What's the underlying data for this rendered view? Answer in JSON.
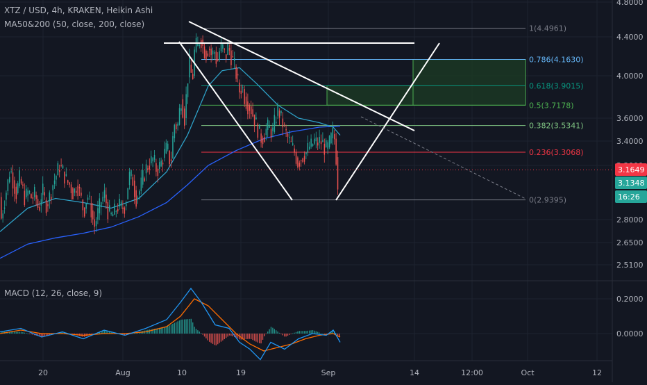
{
  "header": {
    "symbol_line": "XTZ / USD, 4h, KRAKEN, Heikin Ashi",
    "ma_line": "MA50&200 (50, close, 200, close)",
    "macd_line": "MACD (12, 26, close, 9)"
  },
  "colors": {
    "background": "#131722",
    "grid": "#1e2330",
    "axis_text": "#b2b5be",
    "up": "#26a69a",
    "down": "#ef5350",
    "ma50": "#2ea1c7",
    "ma200": "#2962ff",
    "macd": "#2196f3",
    "signal": "#ff6d00",
    "fib_zero": "#787b86",
    "fib_236": "#f23645",
    "fib_382": "#81c784",
    "fib_5": "#4caf50",
    "fib_618": "#089981",
    "fib_786": "#64b5f6",
    "fib_1": "#787b86",
    "target_box_fill": "#1b3a24",
    "drawing": "#ffffff",
    "price_badge_red": "#f23645",
    "price_badge_green": "#26a69a"
  },
  "price_axis": {
    "ticks": [
      "4.8000",
      "4.4000",
      "4.0000",
      "3.6000",
      "3.4000",
      "3.2000",
      "2.8000",
      "2.6500",
      "2.5100"
    ],
    "tick_values": [
      4.8,
      4.4,
      4.0,
      3.6,
      3.4,
      3.2,
      2.8,
      2.65,
      2.51
    ],
    "scale": "log",
    "range": [
      2.45,
      4.85
    ]
  },
  "macd_axis": {
    "ticks": [
      "0.2000",
      "0.0000"
    ],
    "tick_values": [
      0.2,
      0.0
    ],
    "range": [
      -0.2,
      0.3
    ]
  },
  "time_axis": {
    "labels": [
      "20",
      "Aug",
      "10",
      "19",
      "Sep",
      "14",
      "12:00",
      "Oct",
      "12"
    ]
  },
  "price_badges": [
    {
      "label": "3.1649",
      "value": 3.1649,
      "color": "red"
    },
    {
      "label": "3.1348",
      "value": 3.1348,
      "color": "green"
    },
    {
      "label": "16:26",
      "value": 3.1348,
      "color": "green"
    }
  ],
  "chart_data": {
    "type": "candlestick",
    "fib_levels": [
      {
        "ratio": "1",
        "label": "1(4.4961)",
        "price": 4.4961
      },
      {
        "ratio": "0.786",
        "label": "0.786(4.1630)",
        "price": 4.163
      },
      {
        "ratio": "0.618",
        "label": "0.618(3.9015)",
        "price": 3.9015
      },
      {
        "ratio": "0.5",
        "label": "0.5(3.7178)",
        "price": 3.7178
      },
      {
        "ratio": "0.382",
        "label": "0.382(3.5341)",
        "price": 3.5341
      },
      {
        "ratio": "0.236",
        "label": "0.236(3.3068)",
        "price": 3.3068
      },
      {
        "ratio": "0",
        "label": "0(2.9395)",
        "price": 2.9395
      }
    ],
    "price_path": [
      [
        0,
        2.78
      ],
      [
        5,
        2.92
      ],
      [
        10,
        3.05
      ],
      [
        14,
        3.18
      ],
      [
        18,
        3.08
      ],
      [
        23,
        2.98
      ],
      [
        27,
        3.1
      ],
      [
        30,
        3.05
      ],
      [
        35,
        2.95
      ],
      [
        40,
        3.0
      ],
      [
        45,
        2.95
      ],
      [
        50,
        2.98
      ],
      [
        55,
        2.86
      ],
      [
        60,
        3.02
      ],
      [
        65,
        2.9
      ],
      [
        70,
        2.95
      ],
      [
        75,
        3.05
      ],
      [
        80,
        3.12
      ],
      [
        85,
        3.2
      ],
      [
        90,
        3.15
      ],
      [
        95,
        3.08
      ],
      [
        100,
        3.05
      ],
      [
        105,
        2.98
      ],
      [
        110,
        3.06
      ],
      [
        115,
        2.97
      ],
      [
        120,
        2.85
      ],
      [
        125,
        2.98
      ],
      [
        130,
        2.88
      ],
      [
        135,
        2.75
      ],
      [
        140,
        2.84
      ],
      [
        145,
        2.93
      ],
      [
        150,
        2.98
      ],
      [
        155,
        2.85
      ],
      [
        160,
        2.82
      ],
      [
        165,
        2.86
      ],
      [
        170,
        2.9
      ],
      [
        175,
        2.88
      ],
      [
        180,
        2.9
      ],
      [
        185,
        3.12
      ],
      [
        190,
        3.1
      ],
      [
        195,
        2.95
      ],
      [
        200,
        3.0
      ],
      [
        205,
        3.1
      ],
      [
        210,
        3.18
      ],
      [
        215,
        3.22
      ],
      [
        220,
        3.25
      ],
      [
        225,
        3.16
      ],
      [
        230,
        3.2
      ],
      [
        235,
        3.28
      ],
      [
        240,
        3.35
      ],
      [
        245,
        3.2
      ],
      [
        250,
        3.55
      ],
      [
        255,
        3.52
      ],
      [
        260,
        3.78
      ],
      [
        265,
        3.6
      ],
      [
        270,
        4.0
      ],
      [
        273,
        4.15
      ],
      [
        276,
        3.9
      ],
      [
        280,
        4.3
      ],
      [
        284,
        4.3
      ],
      [
        288,
        4.4
      ],
      [
        292,
        4.28
      ],
      [
        296,
        4.22
      ],
      [
        300,
        4.3
      ],
      [
        304,
        4.2
      ],
      [
        308,
        4.25
      ],
      [
        312,
        4.12
      ],
      [
        316,
        4.27
      ],
      [
        320,
        4.28
      ],
      [
        324,
        4.18
      ],
      [
        328,
        4.3
      ],
      [
        332,
        4.2
      ],
      [
        336,
        4.12
      ],
      [
        340,
        4.0
      ],
      [
        344,
        3.85
      ],
      [
        348,
        3.9
      ],
      [
        352,
        3.78
      ],
      [
        356,
        3.72
      ],
      [
        360,
        3.7
      ],
      [
        364,
        3.62
      ],
      [
        368,
        3.55
      ],
      [
        372,
        3.48
      ],
      [
        376,
        3.42
      ],
      [
        380,
        3.45
      ],
      [
        384,
        3.52
      ],
      [
        388,
        3.5
      ],
      [
        392,
        3.47
      ],
      [
        396,
        3.6
      ],
      [
        400,
        3.68
      ],
      [
        404,
        3.6
      ],
      [
        408,
        3.52
      ],
      [
        412,
        3.45
      ],
      [
        416,
        3.4
      ],
      [
        420,
        3.35
      ],
      [
        424,
        3.3
      ],
      [
        428,
        3.22
      ],
      [
        432,
        3.25
      ],
      [
        436,
        3.28
      ],
      [
        440,
        3.3
      ],
      [
        444,
        3.35
      ],
      [
        448,
        3.36
      ],
      [
        452,
        3.4
      ],
      [
        456,
        3.38
      ],
      [
        460,
        3.4
      ],
      [
        464,
        3.38
      ],
      [
        468,
        3.33
      ],
      [
        472,
        3.35
      ],
      [
        476,
        3.42
      ],
      [
        480,
        3.48
      ],
      [
        483,
        3.3
      ],
      [
        486,
        3.05
      ],
      [
        488,
        2.96
      ]
    ],
    "ma50": [
      [
        0,
        2.72
      ],
      [
        40,
        2.88
      ],
      [
        80,
        2.95
      ],
      [
        120,
        2.92
      ],
      [
        160,
        2.88
      ],
      [
        200,
        2.95
      ],
      [
        240,
        3.15
      ],
      [
        270,
        3.45
      ],
      [
        300,
        3.9
      ],
      [
        320,
        4.05
      ],
      [
        345,
        4.08
      ],
      [
        370,
        3.92
      ],
      [
        400,
        3.72
      ],
      [
        430,
        3.6
      ],
      [
        460,
        3.56
      ],
      [
        480,
        3.52
      ],
      [
        490,
        3.45
      ]
    ],
    "ma200": [
      [
        0,
        2.55
      ],
      [
        40,
        2.64
      ],
      [
        80,
        2.68
      ],
      [
        120,
        2.71
      ],
      [
        160,
        2.75
      ],
      [
        200,
        2.82
      ],
      [
        240,
        2.92
      ],
      [
        270,
        3.05
      ],
      [
        300,
        3.2
      ],
      [
        340,
        3.32
      ],
      [
        380,
        3.42
      ],
      [
        420,
        3.48
      ],
      [
        460,
        3.52
      ],
      [
        490,
        3.53
      ]
    ],
    "macd_line": [
      [
        0,
        0.01
      ],
      [
        30,
        0.03
      ],
      [
        60,
        -0.02
      ],
      [
        90,
        0.01
      ],
      [
        120,
        -0.03
      ],
      [
        150,
        0.02
      ],
      [
        180,
        -0.01
      ],
      [
        210,
        0.03
      ],
      [
        240,
        0.08
      ],
      [
        260,
        0.18
      ],
      [
        275,
        0.26
      ],
      [
        290,
        0.18
      ],
      [
        310,
        0.05
      ],
      [
        330,
        0.03
      ],
      [
        345,
        -0.05
      ],
      [
        360,
        -0.09
      ],
      [
        375,
        -0.15
      ],
      [
        390,
        -0.05
      ],
      [
        410,
        -0.09
      ],
      [
        430,
        -0.03
      ],
      [
        450,
        0.0
      ],
      [
        470,
        -0.01
      ],
      [
        480,
        0.02
      ],
      [
        490,
        -0.05
      ]
    ],
    "signal_line": [
      [
        0,
        0.0
      ],
      [
        30,
        0.02
      ],
      [
        60,
        0.0
      ],
      [
        90,
        0.0
      ],
      [
        120,
        -0.01
      ],
      [
        150,
        0.0
      ],
      [
        180,
        0.0
      ],
      [
        210,
        0.01
      ],
      [
        240,
        0.04
      ],
      [
        260,
        0.1
      ],
      [
        280,
        0.2
      ],
      [
        300,
        0.16
      ],
      [
        320,
        0.08
      ],
      [
        340,
        0.0
      ],
      [
        360,
        -0.06
      ],
      [
        380,
        -0.1
      ],
      [
        400,
        -0.08
      ],
      [
        420,
        -0.06
      ],
      [
        440,
        -0.03
      ],
      [
        460,
        -0.01
      ],
      [
        480,
        0.0
      ],
      [
        490,
        -0.02
      ]
    ]
  }
}
